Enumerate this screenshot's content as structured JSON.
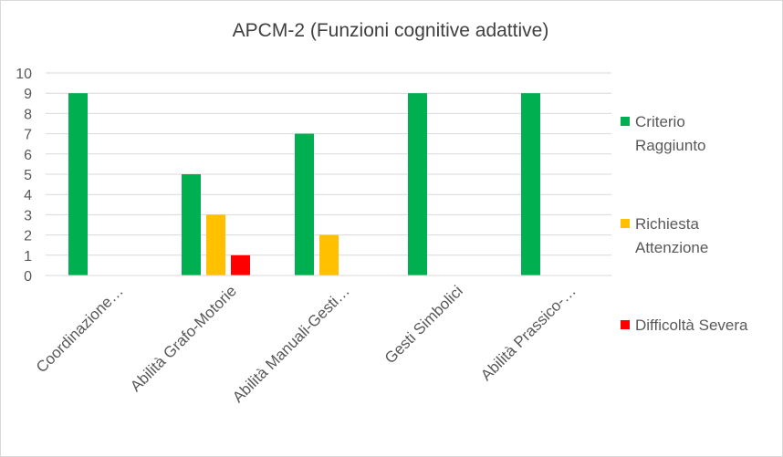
{
  "chart_data": {
    "type": "bar",
    "title": "APCM-2 (Funzioni cognitive adattive)",
    "categories": [
      "Coordinazione…",
      "Abilità Grafo-Motorie",
      "Abilità Manuali-Gesti…",
      "Gesti Simbolici",
      "Abilità Prassico-…"
    ],
    "series": [
      {
        "name": "Criterio Raggiunto",
        "legend_lines": [
          "Criterio",
          "Raggiunto"
        ],
        "color": "#00b050",
        "values": [
          9,
          5,
          7,
          9,
          9
        ]
      },
      {
        "name": "Richiesta Attenzione",
        "legend_lines": [
          "Richiesta",
          "Attenzione"
        ],
        "color": "#ffc000",
        "values": [
          0,
          3,
          2,
          0,
          0
        ]
      },
      {
        "name": "Difficoltà Severa",
        "legend_lines": [
          "Difficoltà Severa"
        ],
        "color": "#ff0000",
        "values": [
          0,
          1,
          0,
          0,
          0
        ]
      }
    ],
    "ylim": [
      0,
      10
    ],
    "yticks": [
      0,
      1,
      2,
      3,
      4,
      5,
      6,
      7,
      8,
      9,
      10
    ],
    "xlabel": "",
    "ylabel": "",
    "grid": true,
    "legend_position": "right"
  }
}
